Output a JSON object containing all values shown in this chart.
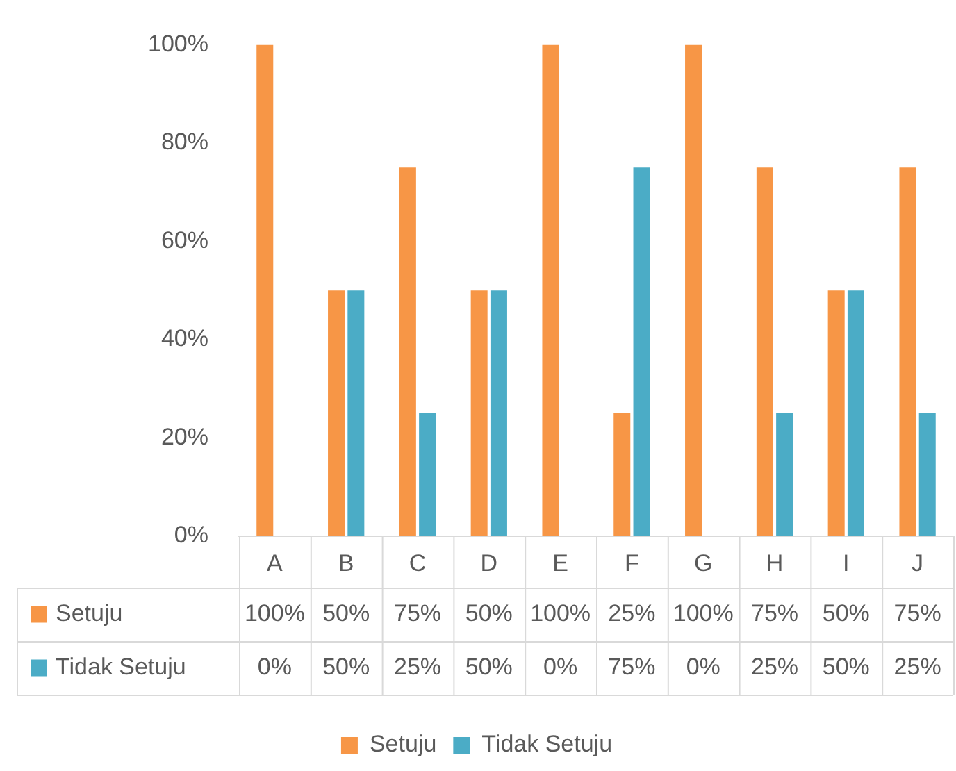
{
  "chart_data": {
    "type": "bar",
    "categories": [
      "A",
      "B",
      "C",
      "D",
      "E",
      "F",
      "G",
      "H",
      "I",
      "J"
    ],
    "series": [
      {
        "name": "Setuju",
        "color": "#f79646",
        "values": [
          100,
          50,
          75,
          50,
          100,
          25,
          100,
          75,
          50,
          75
        ],
        "value_labels": [
          "100%",
          "50%",
          "75%",
          "50%",
          "100%",
          "25%",
          "100%",
          "75%",
          "50%",
          "75%"
        ]
      },
      {
        "name": "Tidak Setuju",
        "color": "#4bacc6",
        "values": [
          0,
          50,
          25,
          50,
          0,
          75,
          0,
          25,
          50,
          25
        ],
        "value_labels": [
          "0%",
          "50%",
          "25%",
          "50%",
          "0%",
          "75%",
          "0%",
          "25%",
          "50%",
          "25%"
        ]
      }
    ],
    "ylim": [
      0,
      100
    ],
    "yticks": [
      {
        "value": 0,
        "label": "0%"
      },
      {
        "value": 20,
        "label": "20%"
      },
      {
        "value": 40,
        "label": "40%"
      },
      {
        "value": 60,
        "label": "60%"
      },
      {
        "value": 80,
        "label": "80%"
      },
      {
        "value": 100,
        "label": "100%"
      }
    ],
    "grid": false,
    "legend": "bottom"
  }
}
